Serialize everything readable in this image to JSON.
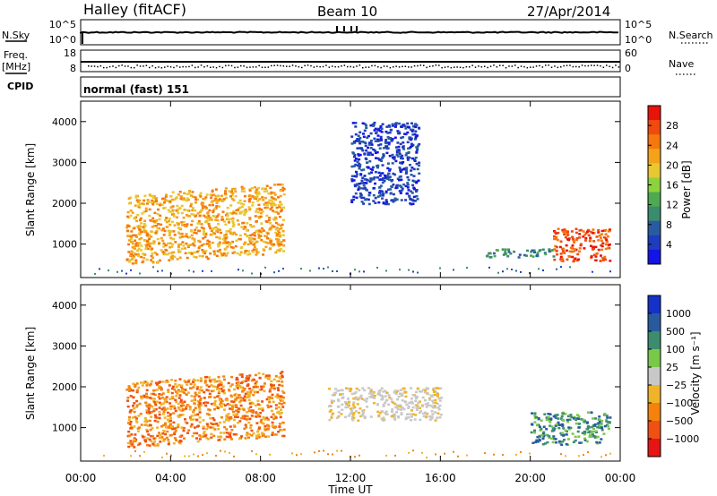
{
  "header": {
    "station": "Halley (fitACF)",
    "beam": "Beam 10",
    "date": "27/Apr/2014"
  },
  "top_panels": {
    "nsky": {
      "label": "N.Sky",
      "right_label": "N.Search",
      "left_ticks": [
        "10^5",
        "10^0"
      ],
      "right_ticks": [
        "10^5",
        "10^0"
      ]
    },
    "freq": {
      "label_line1": "Freq.",
      "label_line2": "[MHz]",
      "left_ticks": [
        "18",
        "8"
      ],
      "right_ticks": [
        "60",
        "0"
      ],
      "right_label": "Nave"
    },
    "cpid": {
      "label": "CPID",
      "value": "normal (fast) 151"
    }
  },
  "x_axis": {
    "label": "Time UT",
    "ticks": [
      "00:00",
      "04:00",
      "08:00",
      "12:00",
      "16:00",
      "20:00",
      "00:00"
    ]
  },
  "power_panel": {
    "ylabel": "Slant Range [km]",
    "yticks": [
      "4000",
      "3000",
      "2000",
      "1000"
    ],
    "colorbar_label": "Power [dB]",
    "colorbar_ticks": [
      "28",
      "24",
      "20",
      "16",
      "12",
      "8",
      "4"
    ],
    "colors": [
      "#e8140a",
      "#f04a10",
      "#f5780e",
      "#f5a21a",
      "#e8c832",
      "#8cd23c",
      "#4eaa50",
      "#3a8c6e",
      "#285ca0",
      "#1e3cbe",
      "#1414e6"
    ]
  },
  "velocity_panel": {
    "ylabel": "Slant Range [km]",
    "yticks": [
      "4000",
      "3000",
      "2000",
      "1000"
    ],
    "colorbar_label": "Velocity [m s⁻¹]",
    "colorbar_ticks": [
      "1000",
      "500",
      "100",
      "25",
      "−25",
      "−100",
      "−500",
      "−1000"
    ],
    "colors": [
      "#1432c8",
      "#285aa0",
      "#3c8c6e",
      "#78c84a",
      "#c8c8c8",
      "#f0b428",
      "#f5820f",
      "#f05014",
      "#e61414"
    ]
  },
  "chart_data": [
    {
      "type": "heatmap",
      "title": "Power",
      "xlabel": "Time UT",
      "ylabel": "Slant Range [km]",
      "xlim": [
        "00:00",
        "24:00"
      ],
      "ylim": [
        180,
        4500
      ],
      "colorbar": {
        "label": "Power [dB]",
        "range": [
          0,
          30
        ]
      },
      "echo_regions": [
        {
          "time_start": "02:00",
          "time_end": "09:00",
          "range_start": 800,
          "range_end": 2500,
          "power_db": 20
        },
        {
          "time_start": "12:00",
          "time_end": "15:00",
          "range_start": 2000,
          "range_end": 4000,
          "power_db": 8
        },
        {
          "time_start": "18:00",
          "time_end": "21:00",
          "range_start": 700,
          "range_end": 900,
          "power_db": 12
        },
        {
          "time_start": "21:00",
          "time_end": "23:30",
          "range_start": 600,
          "range_end": 1400,
          "power_db": 28
        }
      ]
    },
    {
      "type": "heatmap",
      "title": "Velocity",
      "xlabel": "Time UT",
      "ylabel": "Slant Range [km]",
      "xlim": [
        "00:00",
        "24:00"
      ],
      "ylim": [
        180,
        4500
      ],
      "colorbar": {
        "label": "Velocity [m s⁻¹]",
        "range": [
          -1000,
          1000
        ]
      },
      "echo_regions": [
        {
          "time_start": "02:00",
          "time_end": "09:00",
          "range_start": 800,
          "range_end": 2400,
          "velocity": -500
        },
        {
          "time_start": "11:00",
          "time_end": "16:00",
          "range_start": 1200,
          "range_end": 2000,
          "velocity": 0
        },
        {
          "time_start": "20:00",
          "time_end": "23:30",
          "range_start": 600,
          "range_end": 1400,
          "velocity": 100
        }
      ]
    }
  ]
}
